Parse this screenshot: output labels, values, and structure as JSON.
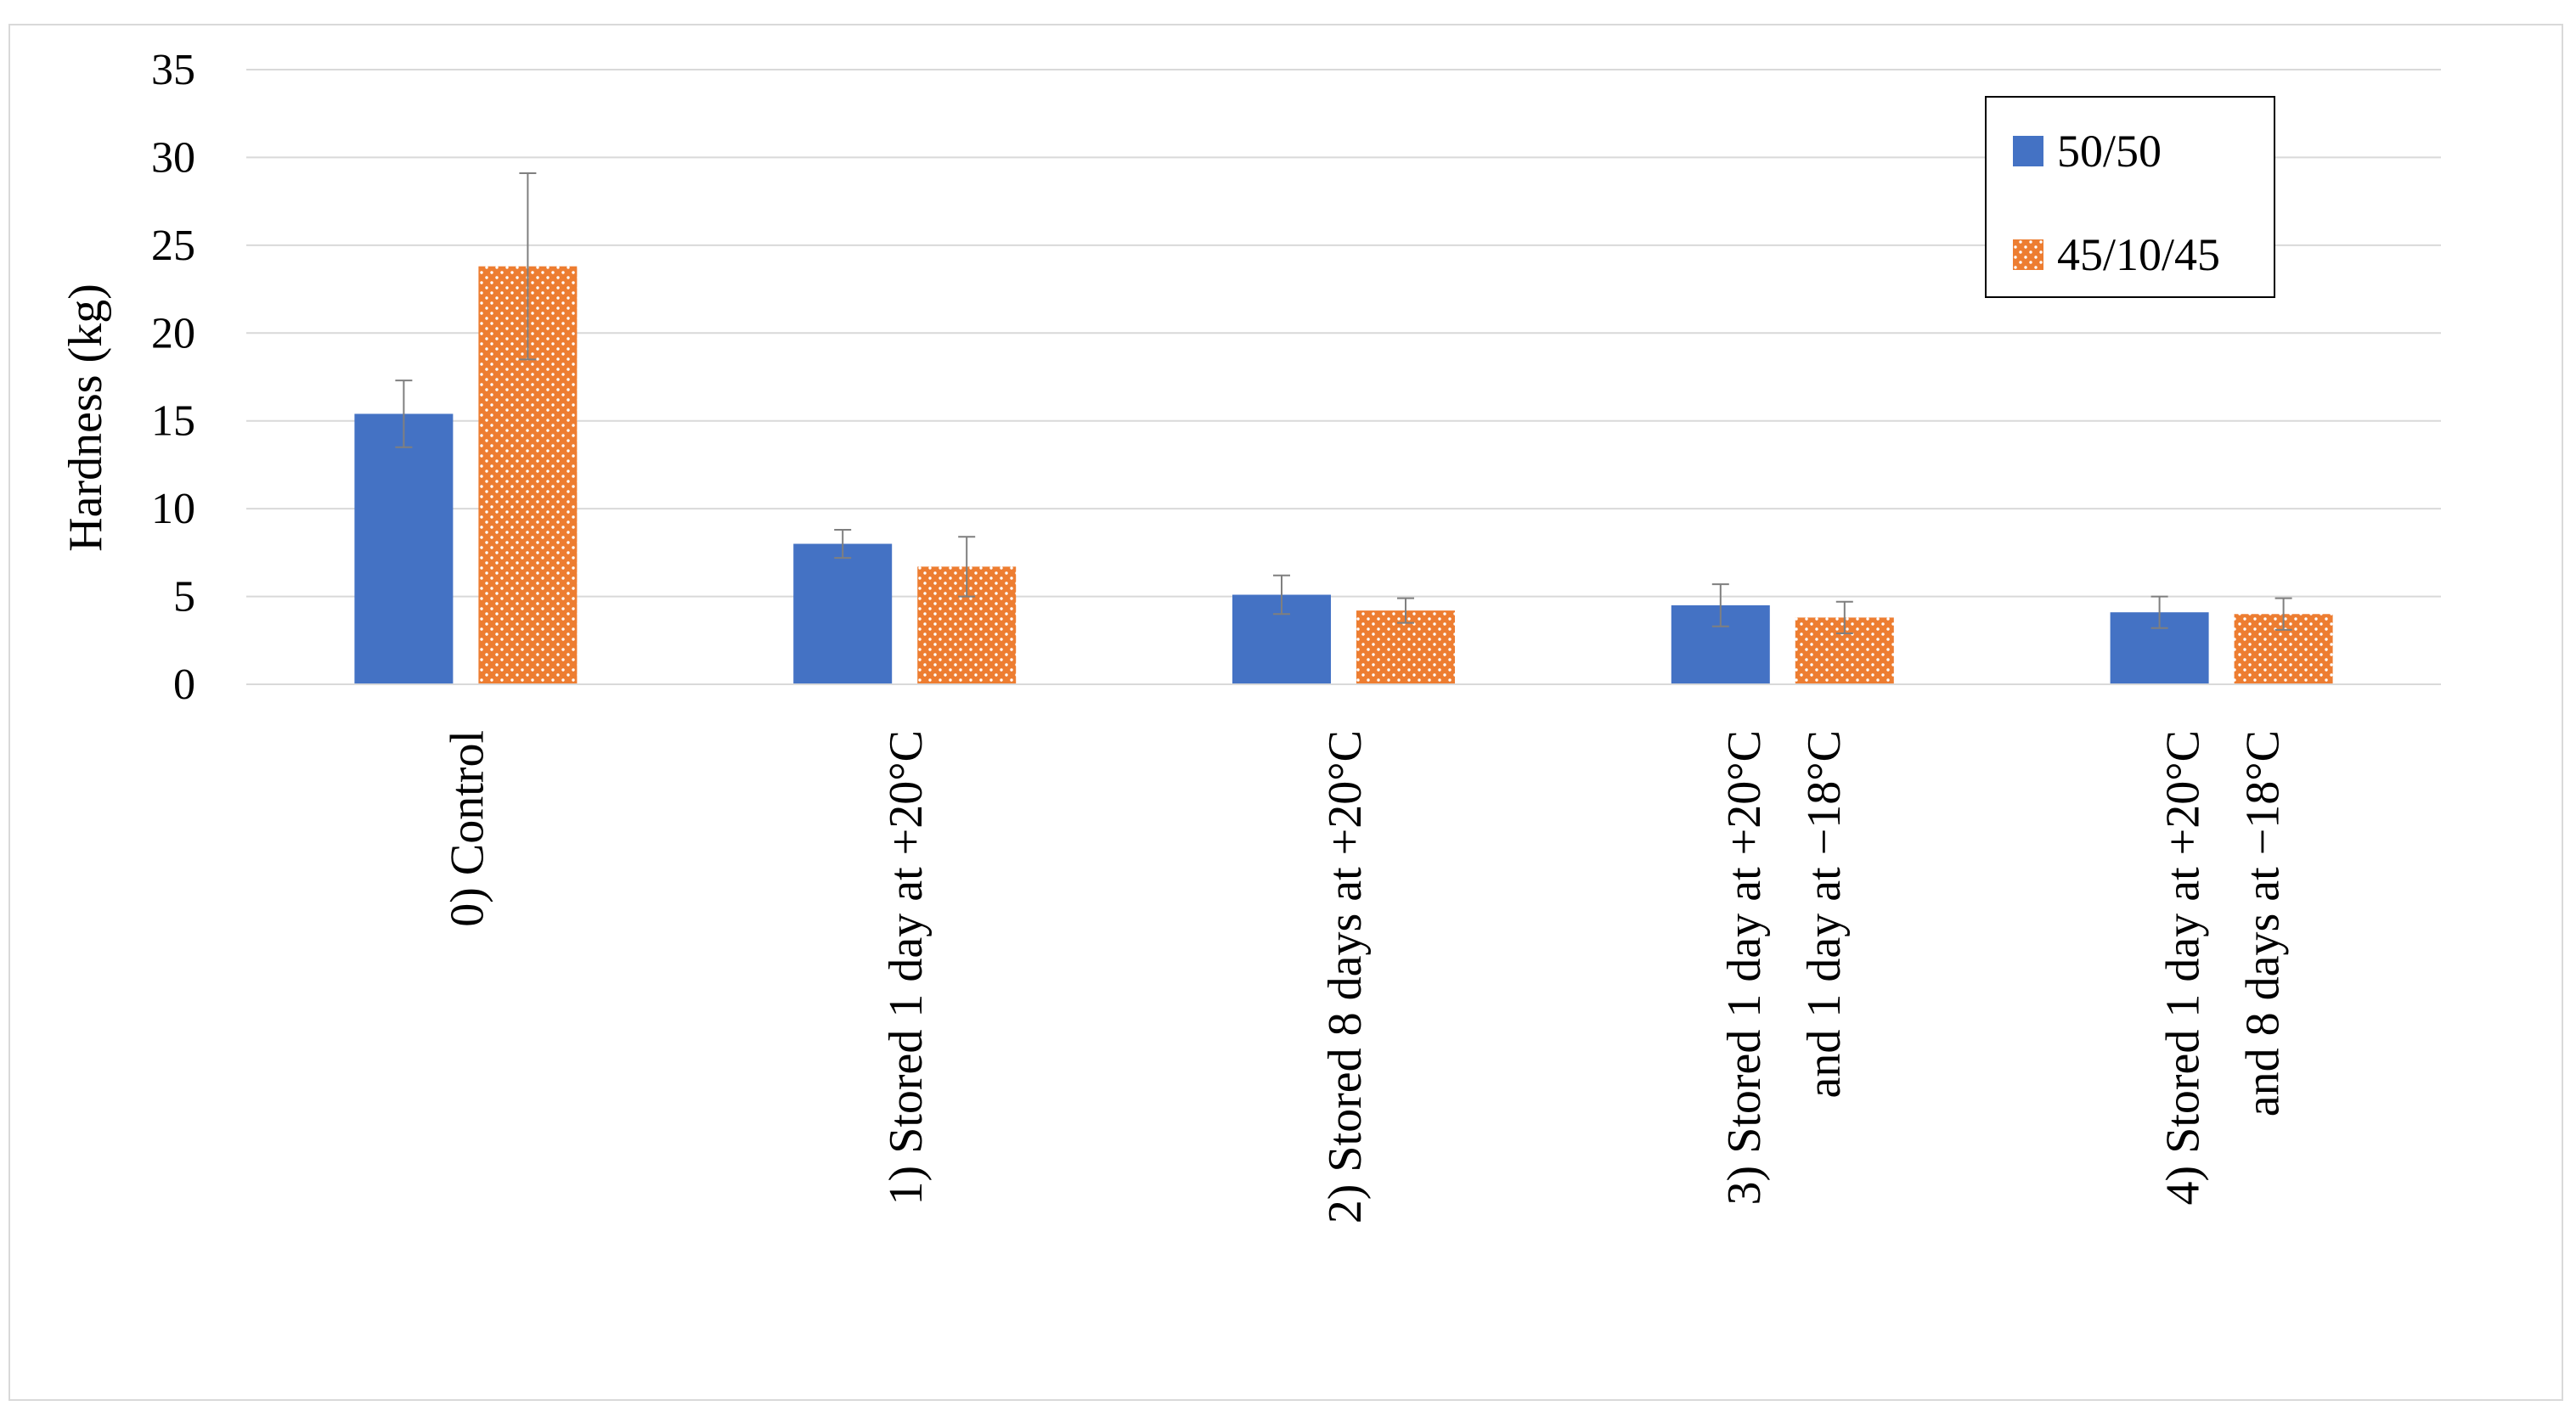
{
  "chart_data": {
    "type": "bar",
    "categories": [
      [
        "0) Control"
      ],
      [
        "1) Stored 1 day at +20°C"
      ],
      [
        "2) Stored 8 days at +20°C"
      ],
      [
        "3) Stored 1 day at +20°C",
        "and 1 day at −18°C"
      ],
      [
        "4) Stored 1 day at +20°C",
        "and 8 days at −18°C"
      ]
    ],
    "series": [
      {
        "name": "50/50",
        "color": "#4472c4",
        "pattern": "solid",
        "values": [
          15.4,
          8.0,
          5.1,
          4.5,
          4.1
        ],
        "errors": [
          1.9,
          0.8,
          1.1,
          1.2,
          0.9
        ]
      },
      {
        "name": "45/10/45",
        "color": "#ed7d31",
        "pattern": "dotted",
        "values": [
          23.8,
          6.7,
          4.2,
          3.8,
          4.0
        ],
        "errors": [
          5.3,
          1.7,
          0.7,
          0.9,
          0.9
        ]
      }
    ],
    "xlabel": "",
    "ylabel": "Hardness (kg)",
    "ylim": [
      0,
      35
    ],
    "yticks": [
      0,
      5,
      10,
      15,
      20,
      25,
      30,
      35
    ],
    "grid": true,
    "legend_position": "top-right"
  }
}
